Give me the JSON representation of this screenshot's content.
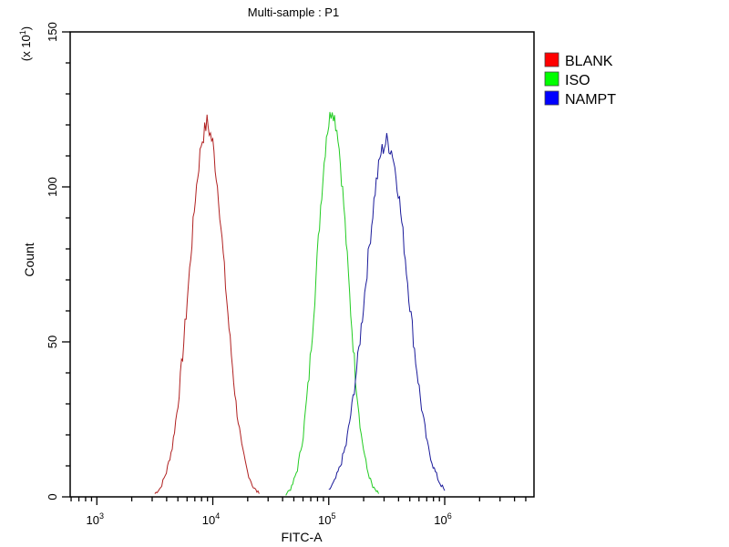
{
  "chart_data": {
    "type": "line",
    "title": "Multi-sample : P1",
    "xlabel": "FITC-A",
    "ylabel": "Count",
    "ylabel_multiplier": "(x 10",
    "ylabel_multiplier_exp": "1",
    "xscale": "log",
    "xlim_log10": [
      2.77,
      6.77
    ],
    "ylim": [
      0,
      150
    ],
    "xticks": [
      {
        "base": "10",
        "exp": "3",
        "log10": 3
      },
      {
        "base": "10",
        "exp": "4",
        "log10": 4
      },
      {
        "base": "10",
        "exp": "5",
        "log10": 5
      },
      {
        "base": "10",
        "exp": "6",
        "log10": 6
      }
    ],
    "yticks": [
      "0",
      "50",
      "100",
      "150"
    ],
    "ytick_values": [
      0,
      50,
      100,
      150
    ],
    "legend_position": "top-right-outside",
    "series": [
      {
        "name": "BLANK",
        "color": "#ff0000",
        "line_color": "#b02020",
        "x_log10_start": 3.5,
        "x_log10_step": 0.05,
        "values": [
          1,
          3,
          8,
          16,
          30,
          50,
          73,
          97,
          114,
          121,
          114,
          97,
          73,
          50,
          30,
          16,
          8,
          3,
          1
        ]
      },
      {
        "name": "ISO",
        "color": "#00ff00",
        "line_color": "#22cc22",
        "x_log10_start": 4.63,
        "x_log10_step": 0.05,
        "values": [
          1,
          3,
          9,
          20,
          39,
          65,
          94,
          117,
          126,
          117,
          94,
          65,
          39,
          20,
          9,
          3,
          1
        ]
      },
      {
        "name": "NAMPT",
        "color": "#0000ff",
        "line_color": "#1a1a9a",
        "x_log10_start": 5.0,
        "x_log10_step": 0.05,
        "values": [
          2,
          5,
          10,
          17,
          29,
          44,
          62,
          81,
          99,
          111,
          115,
          111,
          99,
          81,
          62,
          44,
          29,
          17,
          10,
          5,
          2
        ]
      }
    ]
  }
}
